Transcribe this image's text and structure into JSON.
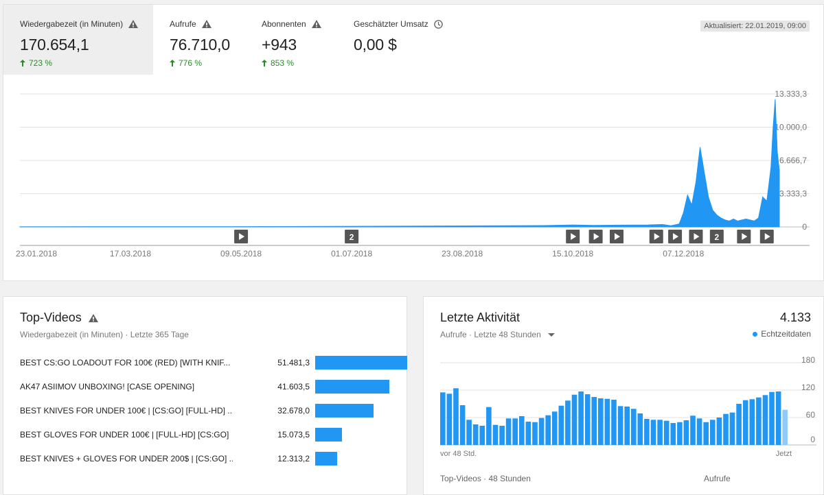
{
  "metrics": [
    {
      "label": "Wiedergabezeit (in Minuten)",
      "value": "170.654,1",
      "delta": "723 %",
      "warning": true
    },
    {
      "label": "Aufrufe",
      "value": "76.710,0",
      "delta": "776 %",
      "warning": true
    },
    {
      "label": "Abonnenten",
      "value": "+943",
      "delta": "853 %",
      "warning": true
    },
    {
      "label": "Geschätzter Umsatz",
      "value": "0,00 $",
      "delta": "",
      "warning": false
    }
  ],
  "updated": "Aktualisiert: 22.01.2019, 09:00",
  "colors": {
    "accent": "#2196f3",
    "positive": "#2b8a2b",
    "grid": "#e0e0e0"
  },
  "chart_data": [
    {
      "type": "area",
      "ylim": [
        0,
        13333.3
      ],
      "y_ticks": [
        "13.333,3",
        "10.000,0",
        "6.666,7",
        "3.333,3",
        "0"
      ],
      "x_ticks": [
        "23.01.2018",
        "17.03.2018",
        "09.05.2018",
        "01.07.2018",
        "23.08.2018",
        "15.10.2018",
        "07.12.2018"
      ],
      "markers": [
        {
          "label": "",
          "date": "2018-05-09"
        },
        {
          "label": "2",
          "date": "2018-07-01"
        },
        {
          "label": "",
          "date": "2018-10-15"
        },
        {
          "label": "",
          "date": "2018-10-26"
        },
        {
          "label": "",
          "date": "2018-11-05"
        },
        {
          "label": "",
          "date": "2018-11-24"
        },
        {
          "label": "",
          "date": "2018-12-03"
        },
        {
          "label": "",
          "date": "2018-12-13"
        },
        {
          "label": "2",
          "date": "2018-12-23"
        },
        {
          "label": "",
          "date": "2019-01-05"
        },
        {
          "label": "",
          "date": "2019-01-16"
        }
      ],
      "points": [
        [
          "2018-01-23",
          20
        ],
        [
          "2018-03-17",
          30
        ],
        [
          "2018-05-09",
          30
        ],
        [
          "2018-07-01",
          60
        ],
        [
          "2018-08-23",
          100
        ],
        [
          "2018-10-01",
          140
        ],
        [
          "2018-10-15",
          200
        ],
        [
          "2018-10-25",
          150
        ],
        [
          "2018-11-05",
          180
        ],
        [
          "2018-11-20",
          200
        ],
        [
          "2018-11-27",
          250
        ],
        [
          "2018-12-01",
          120
        ],
        [
          "2018-12-05",
          300
        ],
        [
          "2018-12-07",
          1400
        ],
        [
          "2018-12-09",
          3200
        ],
        [
          "2018-12-11",
          2200
        ],
        [
          "2018-12-13",
          4500
        ],
        [
          "2018-12-15",
          8000
        ],
        [
          "2018-12-17",
          5500
        ],
        [
          "2018-12-19",
          3000
        ],
        [
          "2018-12-21",
          1700
        ],
        [
          "2018-12-23",
          1200
        ],
        [
          "2018-12-25",
          900
        ],
        [
          "2018-12-27",
          700
        ],
        [
          "2018-12-29",
          600
        ],
        [
          "2018-12-31",
          800
        ],
        [
          "2019-01-02",
          600
        ],
        [
          "2019-01-04",
          700
        ],
        [
          "2019-01-06",
          800
        ],
        [
          "2019-01-08",
          700
        ],
        [
          "2019-01-10",
          600
        ],
        [
          "2019-01-12",
          900
        ],
        [
          "2019-01-14",
          3000
        ],
        [
          "2019-01-16",
          2600
        ],
        [
          "2019-01-18",
          6000
        ],
        [
          "2019-01-19",
          10000
        ],
        [
          "2019-01-20",
          12800
        ],
        [
          "2019-01-21",
          7500
        ],
        [
          "2019-01-22",
          5700
        ]
      ]
    },
    {
      "type": "bar",
      "ylim": [
        0,
        180
      ],
      "y_ticks": [
        "180",
        "120",
        "60",
        "0"
      ],
      "x_labels": {
        "start": "vor 48 Std.",
        "end": "Jetzt"
      },
      "values": [
        115,
        112,
        124,
        87,
        55,
        45,
        42,
        83,
        44,
        42,
        58,
        58,
        63,
        51,
        50,
        59,
        65,
        73,
        86,
        97,
        110,
        117,
        111,
        105,
        102,
        101,
        99,
        85,
        84,
        79,
        69,
        57,
        55,
        55,
        53,
        48,
        50,
        54,
        64,
        58,
        50,
        55,
        60,
        68,
        71,
        90,
        98,
        100,
        104,
        109,
        116,
        117,
        77
      ],
      "last_partial": true
    }
  ],
  "top_videos": {
    "title": "Top-Videos",
    "subtitle": "Wiedergabezeit (in Minuten) · Letzte 365 Tage",
    "rows": [
      {
        "title": "BEST CS:GO LOADOUT FOR 100€ (RED) [WITH KNIF...",
        "value": "51.481,3",
        "num": 51481.3
      },
      {
        "title": "AK47 ASIIMOV UNBOXING! [CASE OPENING]",
        "value": "41.603,5",
        "num": 41603.5
      },
      {
        "title": "BEST KNIVES FOR UNDER 100€ | [CS:GO] [FULL-HD] ...",
        "value": "32.678,0",
        "num": 32678.0
      },
      {
        "title": "BEST GLOVES FOR UNDER 100€ | [FULL-HD] [CS:GO]",
        "value": "15.073,5",
        "num": 15073.5
      },
      {
        "title": "BEST KNIVES + GLOVES FOR UNDER 200$ | [CS:GO] ...",
        "value": "12.313,2",
        "num": 12313.2
      }
    ]
  },
  "activity": {
    "title": "Letzte Aktivität",
    "total": "4.133",
    "subtitle": "Aufrufe · Letzte 48 Stunden",
    "realtime": "Echtzeitdaten",
    "footer_left": "Top-Videos · 48 Stunden",
    "footer_right": "Aufrufe"
  }
}
